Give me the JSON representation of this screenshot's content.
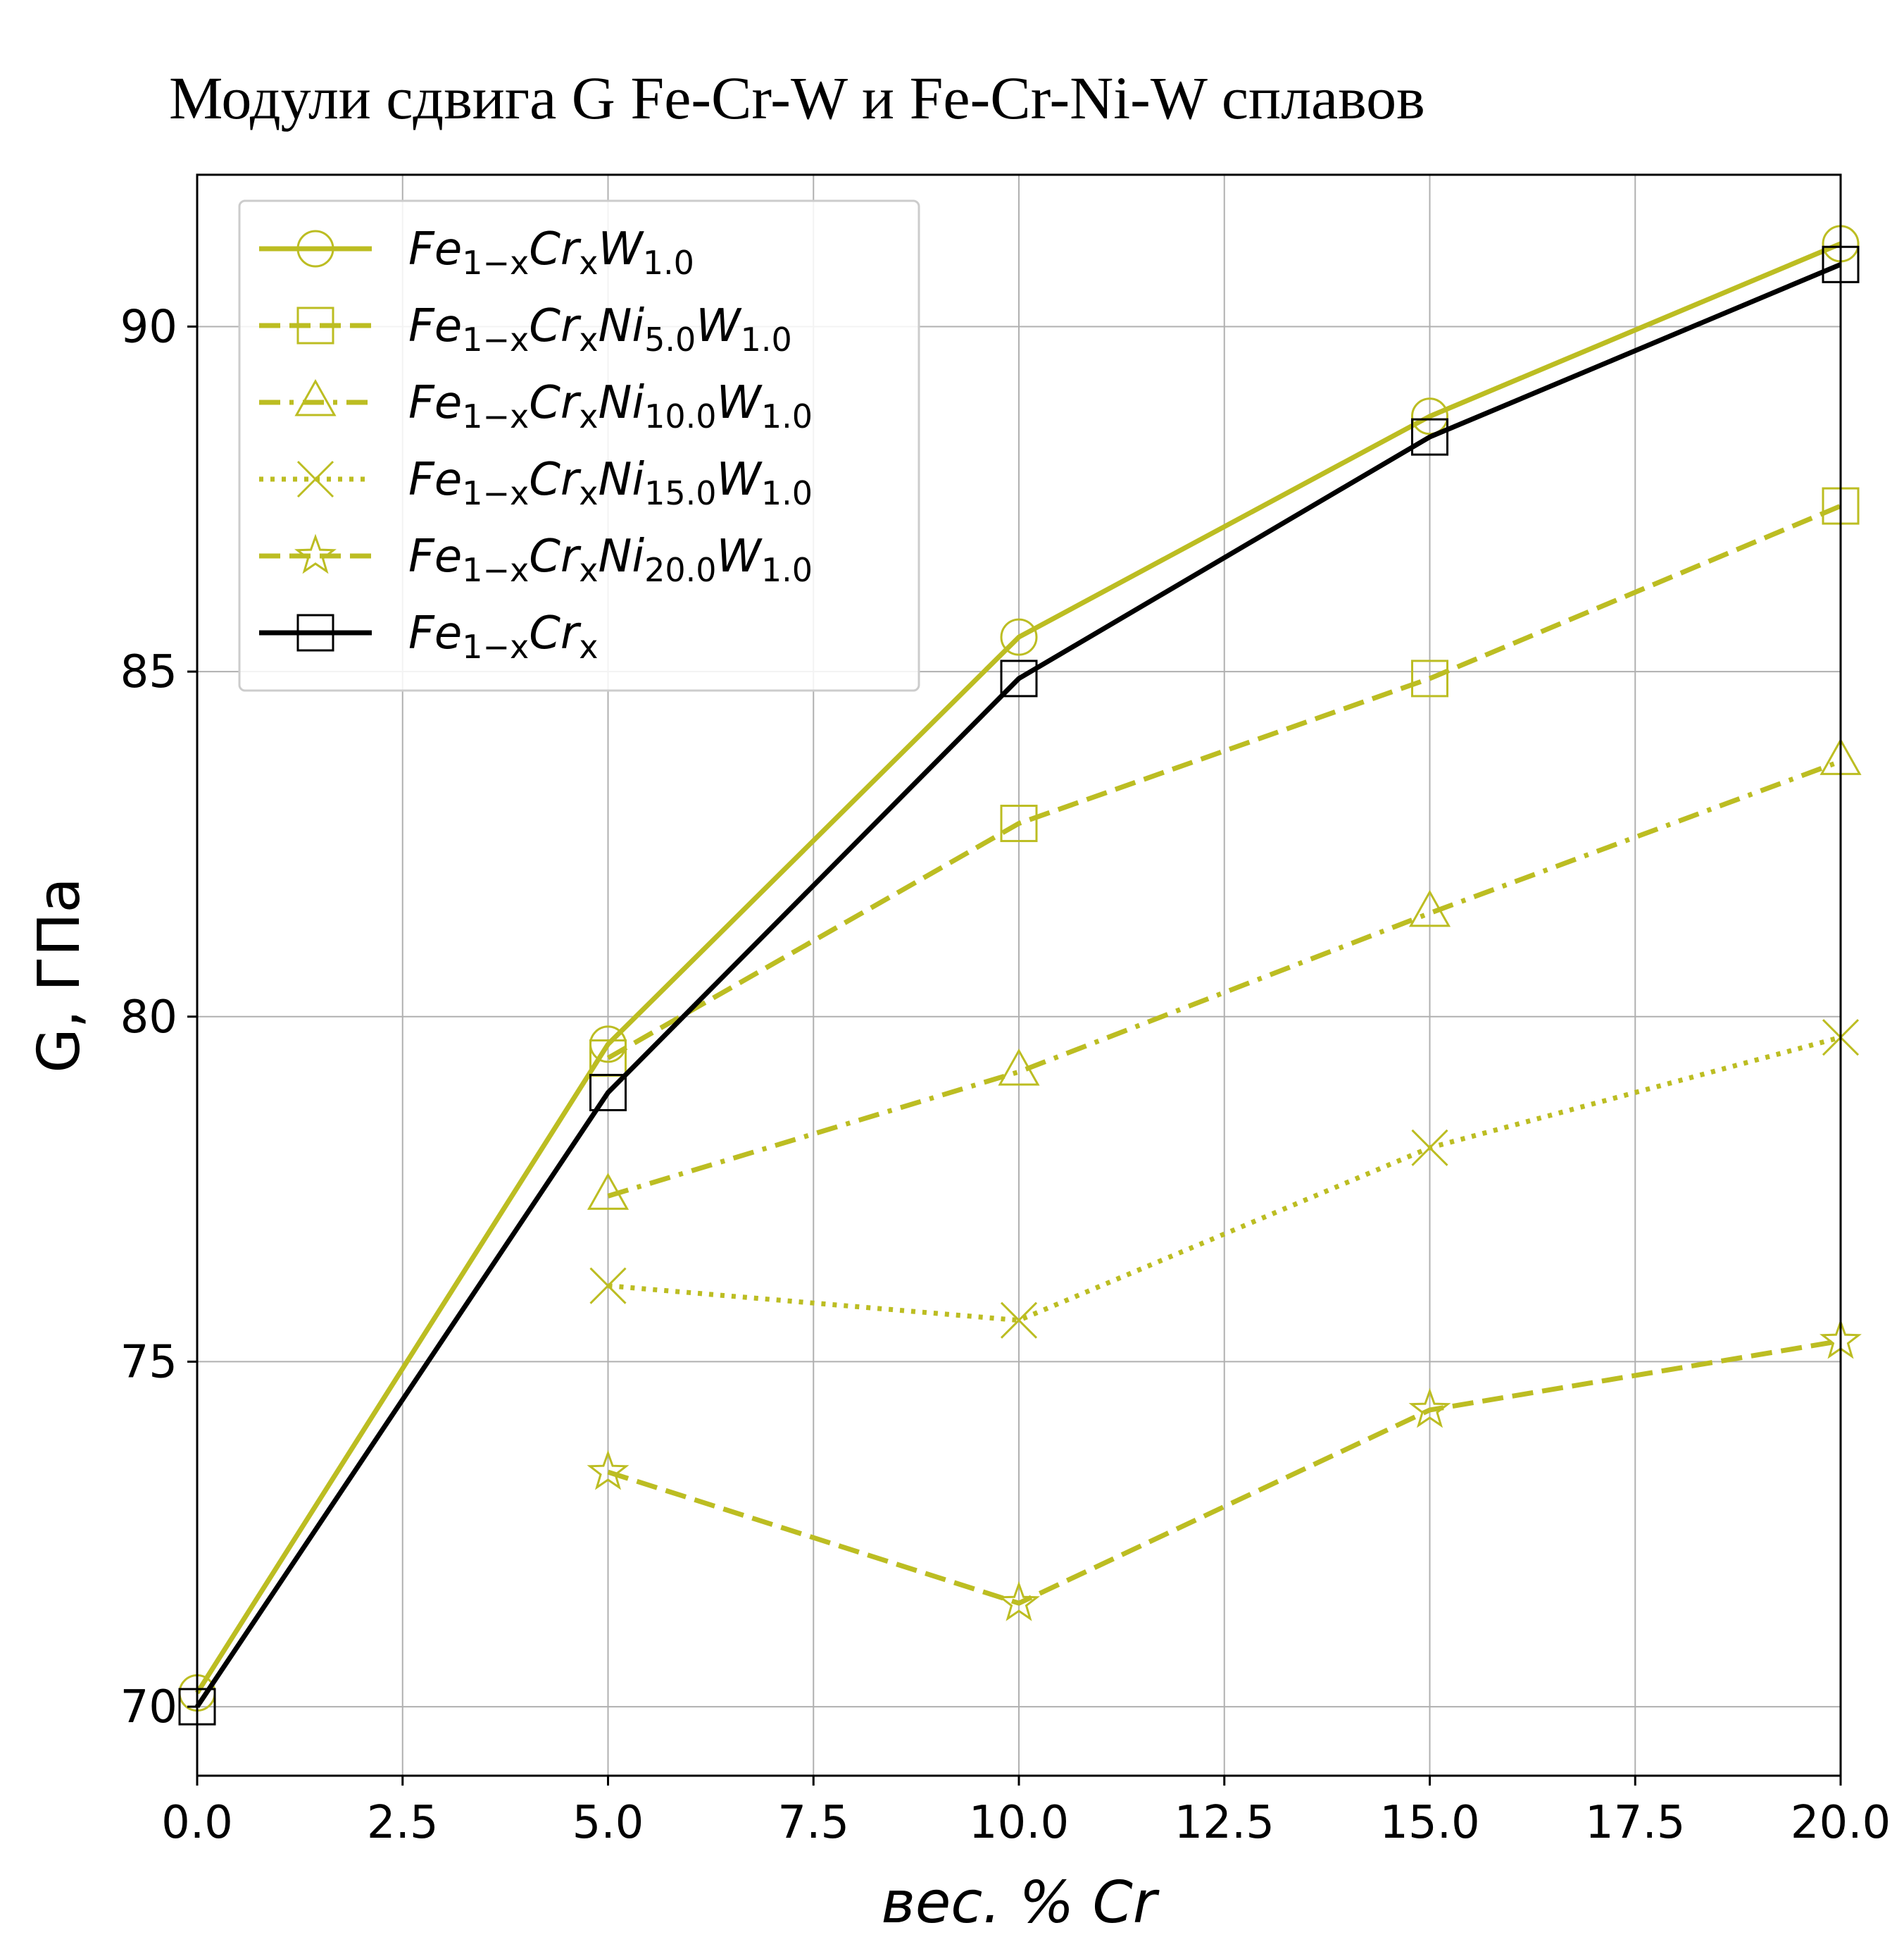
{
  "chart_data": {
    "type": "line",
    "title": "Модули сдвига G Fe-Cr-W и Fe-Cr-Ni-W сплавов",
    "xlabel": "вес. % Cr",
    "ylabel": "G, ГПа",
    "xlim": [
      0,
      20
    ],
    "ylim": [
      69,
      92.2
    ],
    "xticks": [
      0,
      2.5,
      5,
      7.5,
      10,
      12.5,
      15,
      17.5,
      20
    ],
    "xtick_labels": [
      "0.0",
      "2.5",
      "5.0",
      "7.5",
      "10.0",
      "12.5",
      "15.0",
      "17.5",
      "20.0"
    ],
    "yticks": [
      70,
      75,
      80,
      85,
      90
    ],
    "ytick_labels": [
      "70",
      "75",
      "80",
      "85",
      "90"
    ],
    "grid": true,
    "legend_position": "top-left",
    "series": [
      {
        "name": "Fe1−xCrxW1.0",
        "legend": {
          "base": "Fe",
          "parts": [
            [
              "1−x",
              "Cr"
            ],
            [
              "x",
              "W"
            ],
            [
              "1.0",
              ""
            ]
          ]
        },
        "color": "#bcbd22",
        "dash": "solid",
        "marker": "circle",
        "x": [
          0,
          5,
          10,
          15,
          20
        ],
        "y": [
          70.2,
          79.6,
          85.5,
          88.7,
          91.2
        ]
      },
      {
        "name": "Fe1−xCrxNi5.0W1.0",
        "legend": {
          "base": "Fe",
          "parts": [
            [
              "1−x",
              "Cr"
            ],
            [
              "x",
              "Ni"
            ],
            [
              "5.0",
              "W"
            ],
            [
              "1.0",
              ""
            ]
          ]
        },
        "color": "#bcbd22",
        "dash": "dashed",
        "marker": "square",
        "x": [
          5,
          10,
          15,
          20
        ],
        "y": [
          79.4,
          82.8,
          84.9,
          87.4
        ]
      },
      {
        "name": "Fe1−xCrxNi10.0W1.0",
        "legend": {
          "base": "Fe",
          "parts": [
            [
              "1−x",
              "Cr"
            ],
            [
              "x",
              "Ni"
            ],
            [
              "10.0",
              "W"
            ],
            [
              "1.0",
              ""
            ]
          ]
        },
        "color": "#bcbd22",
        "dash": "dashdot",
        "marker": "triangle",
        "x": [
          5,
          10,
          15,
          20
        ],
        "y": [
          77.4,
          79.2,
          81.5,
          83.7
        ]
      },
      {
        "name": "Fe1−xCrxNi15.0W1.0",
        "legend": {
          "base": "Fe",
          "parts": [
            [
              "1−x",
              "Cr"
            ],
            [
              "x",
              "Ni"
            ],
            [
              "15.0",
              "W"
            ],
            [
              "1.0",
              ""
            ]
          ]
        },
        "color": "#bcbd22",
        "dash": "dotted",
        "marker": "x",
        "x": [
          5,
          10,
          15,
          20
        ],
        "y": [
          76.1,
          75.6,
          78.1,
          79.7
        ]
      },
      {
        "name": "Fe1−xCrxNi20.0W1.0",
        "legend": {
          "base": "Fe",
          "parts": [
            [
              "1−x",
              "Cr"
            ],
            [
              "x",
              "Ni"
            ],
            [
              "20.0",
              "W"
            ],
            [
              "1.0",
              ""
            ]
          ]
        },
        "color": "#bcbd22",
        "dash": "dashed",
        "marker": "star",
        "x": [
          5,
          10,
          15,
          20
        ],
        "y": [
          73.4,
          71.5,
          74.3,
          75.3
        ]
      },
      {
        "name": "Fe1−xCrx",
        "legend": {
          "base": "Fe",
          "parts": [
            [
              "1−x",
              "Cr"
            ],
            [
              "x",
              ""
            ]
          ]
        },
        "color": "#000000",
        "dash": "solid",
        "marker": "square",
        "x": [
          0,
          5,
          10,
          15,
          20
        ],
        "y": [
          70.0,
          78.9,
          84.9,
          88.4,
          90.9
        ]
      }
    ]
  }
}
